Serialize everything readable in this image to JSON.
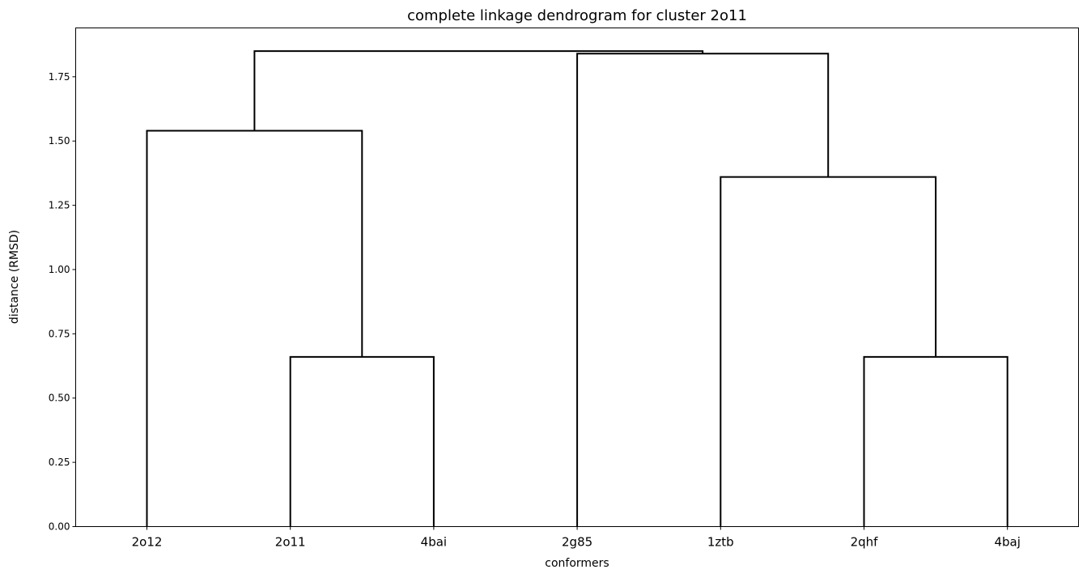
{
  "chart_data": {
    "type": "dendrogram",
    "title": "complete linkage dendrogram for cluster 2o11",
    "xlabel": "conformers",
    "ylabel": "distance (RMSD)",
    "ylim": [
      0,
      1.94
    ],
    "yticks": [
      0.0,
      0.25,
      0.5,
      0.75,
      1.0,
      1.25,
      1.5,
      1.75
    ],
    "ytick_labels": [
      "0.00",
      "0.25",
      "0.50",
      "0.75",
      "1.00",
      "1.25",
      "1.50",
      "1.75"
    ],
    "grid": false,
    "leaves": [
      "2o12",
      "2o11",
      "4bai",
      "2g85",
      "1ztb",
      "2qhf",
      "4baj"
    ],
    "line_color": "#000000",
    "merges": [
      {
        "left": "2o11",
        "right": "4bai",
        "distance": 0.66
      },
      {
        "left": "2qhf",
        "right": "4baj",
        "distance": 0.66
      },
      {
        "left": "1ztb",
        "right": "2qhf+4baj",
        "distance": 1.36
      },
      {
        "left": "2o12",
        "right": "2o11+4bai",
        "distance": 1.54
      },
      {
        "left": "2g85",
        "right": "1ztb+2qhf+4baj",
        "distance": 1.84
      },
      {
        "left": "2o12+2o11+4bai",
        "right": "2g85+1ztb+2qhf+4baj",
        "distance": 1.85
      }
    ]
  }
}
